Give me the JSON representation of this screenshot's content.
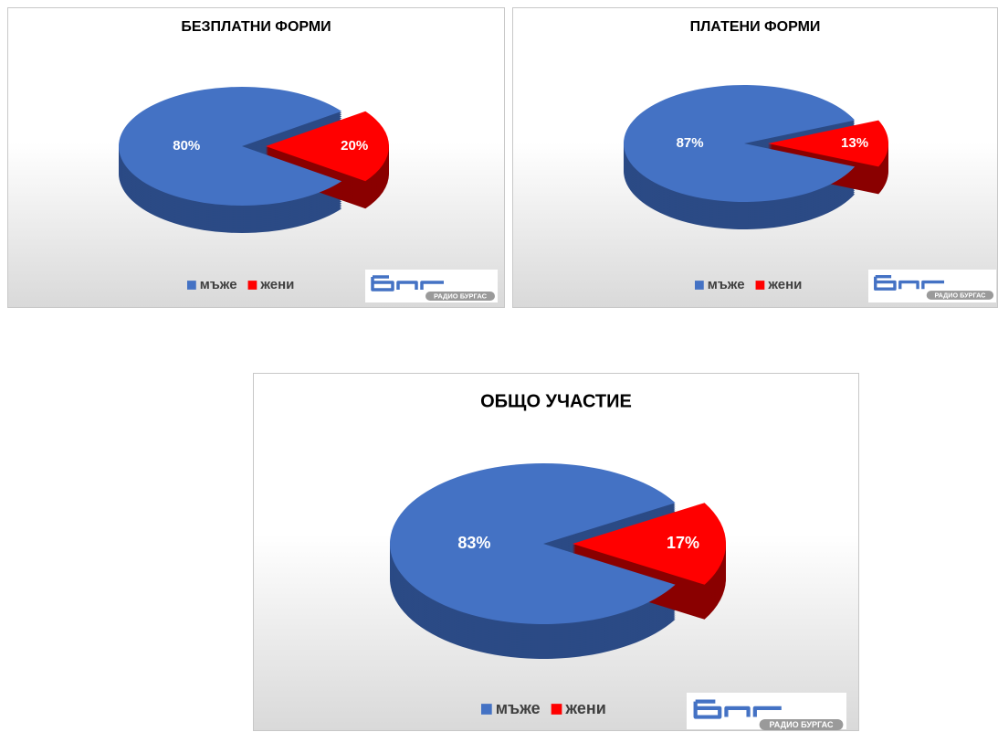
{
  "chart_data": [
    {
      "type": "pie",
      "title": "БЕЗПЛАТНИ ФОРМИ",
      "categories": [
        "мъже",
        "жени"
      ],
      "values": [
        80,
        20
      ],
      "value_labels": [
        "80%",
        "20%"
      ],
      "colors": [
        "#4472c4",
        "#ff0000"
      ],
      "logo": "РАДИО БУРГАС"
    },
    {
      "type": "pie",
      "title": "ПЛАТЕНИ ФОРМИ",
      "categories": [
        "мъже",
        "жени"
      ],
      "values": [
        87,
        13
      ],
      "value_labels": [
        "87%",
        "13%"
      ],
      "colors": [
        "#4472c4",
        "#ff0000"
      ],
      "logo": "РАДИО БУРГАС"
    },
    {
      "type": "pie",
      "title": "ОБЩО УЧАСТИЕ",
      "categories": [
        "мъже",
        "жени"
      ],
      "values": [
        83,
        17
      ],
      "value_labels": [
        "83%",
        "17%"
      ],
      "colors": [
        "#4472c4",
        "#ff0000"
      ],
      "logo": "РАДИО БУРГАС"
    }
  ]
}
